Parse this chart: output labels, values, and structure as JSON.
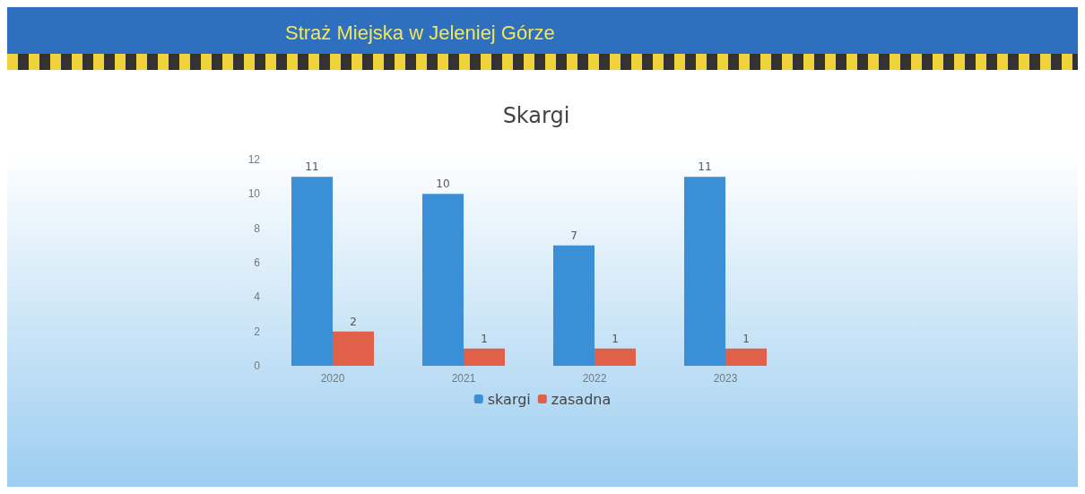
{
  "chart_data": {
    "type": "bar",
    "subtitle": "Straż Miejska w Jeleniej Górze",
    "title": "Skargi",
    "categories": [
      "2020",
      "2021",
      "2022",
      "2023"
    ],
    "series": [
      {
        "name": "skargi",
        "color": "#3a8fd6",
        "values": [
          11,
          10,
          7,
          11
        ]
      },
      {
        "name": "zasadna",
        "color": "#e0604a",
        "values": [
          2,
          1,
          1,
          1
        ]
      }
    ],
    "ylim": [
      0,
      12
    ],
    "yticks": [
      0,
      2,
      4,
      6,
      8,
      10,
      12
    ],
    "data_labels": true,
    "legend": "bottom"
  }
}
